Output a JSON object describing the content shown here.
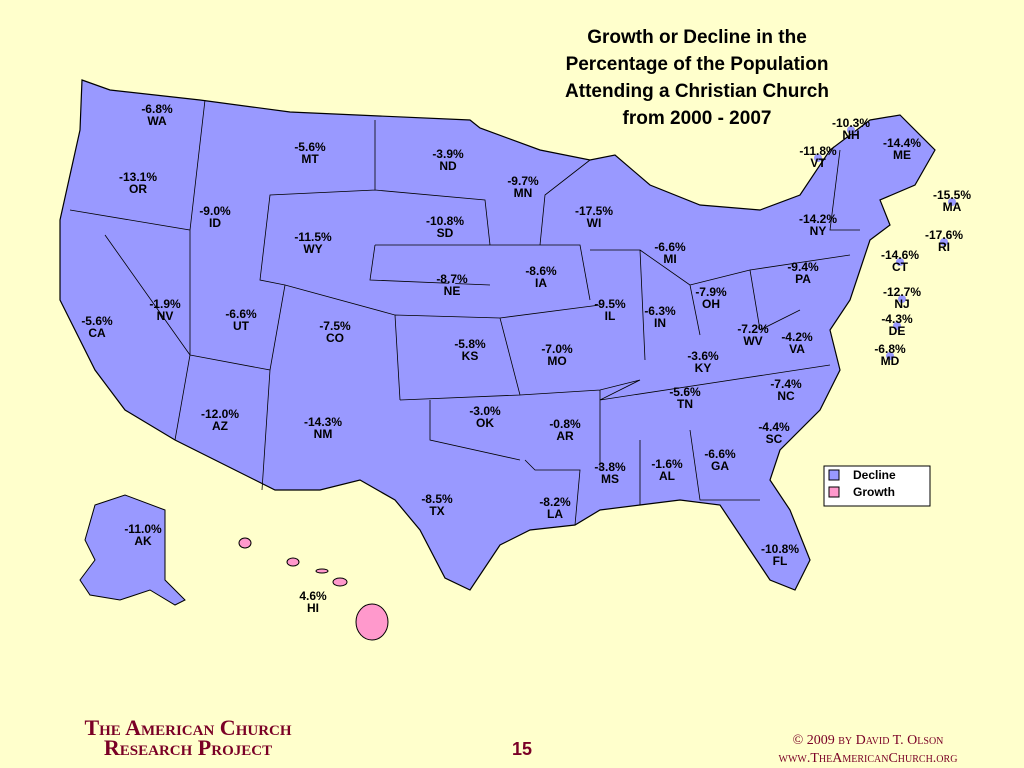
{
  "title": [
    "Growth or Decline in the",
    "Percentage of the Population",
    "Attending a Christian Church",
    "from 2000 - 2007"
  ],
  "states": [
    {
      "abbr": "WA",
      "value": -6.8,
      "value_label": "-6.8%"
    },
    {
      "abbr": "OR",
      "value": -13.1,
      "value_label": "-13.1%"
    },
    {
      "abbr": "CA",
      "value": -5.6,
      "value_label": "-5.6%"
    },
    {
      "abbr": "NV",
      "value": -1.9,
      "value_label": "-1.9%"
    },
    {
      "abbr": "ID",
      "value": -9.0,
      "value_label": "-9.0%"
    },
    {
      "abbr": "MT",
      "value": -5.6,
      "value_label": "-5.6%"
    },
    {
      "abbr": "WY",
      "value": -11.5,
      "value_label": "-11.5%"
    },
    {
      "abbr": "UT",
      "value": -6.6,
      "value_label": "-6.6%"
    },
    {
      "abbr": "CO",
      "value": -7.5,
      "value_label": "-7.5%"
    },
    {
      "abbr": "AZ",
      "value": -12.0,
      "value_label": "-12.0%"
    },
    {
      "abbr": "NM",
      "value": -14.3,
      "value_label": "-14.3%"
    },
    {
      "abbr": "ND",
      "value": -3.9,
      "value_label": "-3.9%"
    },
    {
      "abbr": "SD",
      "value": -10.8,
      "value_label": "-10.8%"
    },
    {
      "abbr": "NE",
      "value": -8.7,
      "value_label": "-8.7%"
    },
    {
      "abbr": "KS",
      "value": -5.8,
      "value_label": "-5.8%"
    },
    {
      "abbr": "OK",
      "value": -3.0,
      "value_label": "-3.0%"
    },
    {
      "abbr": "TX",
      "value": -8.5,
      "value_label": "-8.5%"
    },
    {
      "abbr": "MN",
      "value": -9.7,
      "value_label": "-9.7%"
    },
    {
      "abbr": "IA",
      "value": -8.6,
      "value_label": "-8.6%"
    },
    {
      "abbr": "MO",
      "value": -7.0,
      "value_label": "-7.0%"
    },
    {
      "abbr": "AR",
      "value": -0.8,
      "value_label": "-0.8%"
    },
    {
      "abbr": "LA",
      "value": -8.2,
      "value_label": "-8.2%"
    },
    {
      "abbr": "WI",
      "value": -17.5,
      "value_label": "-17.5%"
    },
    {
      "abbr": "IL",
      "value": -9.5,
      "value_label": "-9.5%"
    },
    {
      "abbr": "MI",
      "value": -6.6,
      "value_label": "-6.6%"
    },
    {
      "abbr": "IN",
      "value": -6.3,
      "value_label": "-6.3%"
    },
    {
      "abbr": "OH",
      "value": -7.9,
      "value_label": "-7.9%"
    },
    {
      "abbr": "KY",
      "value": -3.6,
      "value_label": "-3.6%"
    },
    {
      "abbr": "TN",
      "value": -5.6,
      "value_label": "-5.6%"
    },
    {
      "abbr": "MS",
      "value": -3.8,
      "value_label": "-3.8%"
    },
    {
      "abbr": "AL",
      "value": -1.6,
      "value_label": "-1.6%"
    },
    {
      "abbr": "GA",
      "value": -6.6,
      "value_label": "-6.6%"
    },
    {
      "abbr": "FL",
      "value": -10.8,
      "value_label": "-10.8%"
    },
    {
      "abbr": "SC",
      "value": -4.4,
      "value_label": "-4.4%"
    },
    {
      "abbr": "NC",
      "value": -7.4,
      "value_label": "-7.4%"
    },
    {
      "abbr": "VA",
      "value": -4.2,
      "value_label": "-4.2%"
    },
    {
      "abbr": "WV",
      "value": -7.2,
      "value_label": "-7.2%"
    },
    {
      "abbr": "PA",
      "value": -9.4,
      "value_label": "-9.4%"
    },
    {
      "abbr": "NY",
      "value": -14.2,
      "value_label": "-14.2%"
    },
    {
      "abbr": "VT",
      "value": -11.8,
      "value_label": "-11.8%"
    },
    {
      "abbr": "NH",
      "value": -10.3,
      "value_label": "-10.3%"
    },
    {
      "abbr": "ME",
      "value": -14.4,
      "value_label": "-14.4%"
    },
    {
      "abbr": "MA",
      "value": -15.5,
      "value_label": "-15.5%"
    },
    {
      "abbr": "RI",
      "value": -17.6,
      "value_label": "-17.6%"
    },
    {
      "abbr": "CT",
      "value": -14.6,
      "value_label": "-14.6%"
    },
    {
      "abbr": "NJ",
      "value": -12.7,
      "value_label": "-12.7%"
    },
    {
      "abbr": "DE",
      "value": -4.3,
      "value_label": "-4.3%"
    },
    {
      "abbr": "MD",
      "value": -6.8,
      "value_label": "-6.8%"
    },
    {
      "abbr": "AK",
      "value": -11.0,
      "value_label": "-11.0%"
    },
    {
      "abbr": "HI",
      "value": 4.6,
      "value_label": "4.6%"
    }
  ],
  "legend": [
    {
      "label": "Decline",
      "color": "#9999ff"
    },
    {
      "label": "Growth",
      "color": "#ff99cc"
    }
  ],
  "footer": {
    "org": [
      "The American Church",
      "Research Project"
    ],
    "page": "15",
    "copyright": "© 2009 by David T. Olson",
    "url": "www.TheAmericanChurch.org"
  }
}
